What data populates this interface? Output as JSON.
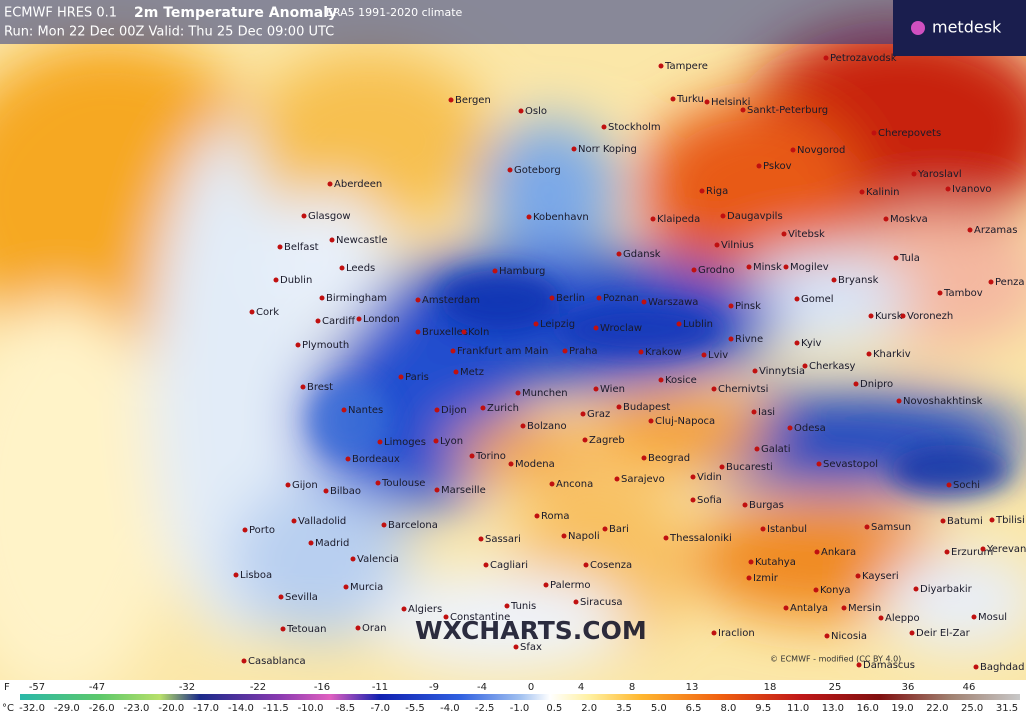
{
  "header": {
    "model": "ECMWF HRES 0.1",
    "product": "2m Temperature Anomaly",
    "climate": "ERA5 1991-2020 climate",
    "run": "Run: Mon 22 Dec 00Z Valid: Thu 25 Dec 09:00 UTC"
  },
  "brand": "metdesk",
  "watermark": "WXCHARTS.COM",
  "copyright": "© ECMWF - modified (CC BY 4.0)",
  "legend": {
    "f_unit": "F",
    "f_labels": [
      "-57",
      "-47",
      "-32",
      "-22",
      "-16",
      "-11",
      "-9",
      "-4",
      "0",
      "4",
      "8",
      "13",
      "18",
      "25",
      "36",
      "46"
    ],
    "c_unit": "°C",
    "c_labels": [
      "-32.0",
      "-29.0",
      "-26.0",
      "-23.0",
      "-20.0",
      "-17.0",
      "-14.0",
      "-11.5",
      "-10.0",
      "-8.5",
      "-7.0",
      "-5.5",
      "-4.0",
      "-2.5",
      "-1.0",
      "0.5",
      "2.0",
      "3.5",
      "5.0",
      "6.5",
      "8.0",
      "9.5",
      "11.0",
      "13.0",
      "16.0",
      "19.0",
      "22.0",
      "25.0",
      "31.5"
    ]
  },
  "cities": [
    "Tampere",
    "Petrozavodsk",
    "Bergen",
    "Oslo",
    "Turku",
    "Helsinki",
    "Sankt-Peterburg",
    "Stockholm",
    "Norr Koping",
    "Cherepovets",
    "Goteborg",
    "Novgorod",
    "Pskov",
    "Yaroslavl",
    "Aberdeen",
    "Ivanovo",
    "Kalinin",
    "Riga",
    "Glasgow",
    "Kobenhavn",
    "Klaipeda",
    "Daugavpils",
    "Moskva",
    "Arzamas",
    "Vitebsk",
    "Newcastle",
    "Belfast",
    "Vilnius",
    "Gdansk",
    "Tula",
    "Leeds",
    "Grodno",
    "Minsk",
    "Mogilev",
    "Hamburg",
    "Dublin",
    "Bryansk",
    "Penza",
    "Tambov",
    "Birmingham",
    "Amsterdam",
    "Berlin",
    "Poznan",
    "Warszawa",
    "Gomel",
    "Pinsk",
    "Cork",
    "Kursk",
    "Voronezh",
    "London",
    "Cardiff",
    "Bruxelles",
    "Koln",
    "Leipzig",
    "Wroclaw",
    "Lublin",
    "Rivne",
    "Kyiv",
    "Plymouth",
    "Frankfurt am Main",
    "Praha",
    "Krakow",
    "Lviv",
    "Kharkiv",
    "Cherkasy",
    "Vinnytsia",
    "Paris",
    "Metz",
    "Kosice",
    "Brest",
    "Dnipro",
    "Chernivtsi",
    "Wien",
    "Munchen",
    "Novoshakhtinsk",
    "Budapest",
    "Zurich",
    "Dijon",
    "Nantes",
    "Graz",
    "Iasi",
    "Cluj-Napoca",
    "Bolzano",
    "Odesa",
    "Zagreb",
    "Limoges",
    "Lyon",
    "Galati",
    "Torino",
    "Bordeaux",
    "Beograd",
    "Modena",
    "Sevastopol",
    "Bucaresti",
    "Vidin",
    "Sarajevo",
    "Toulouse",
    "Marseille",
    "Ancona",
    "Gijon",
    "Bilbao",
    "Sochi",
    "Sofia",
    "Burgas",
    "Roma",
    "Batumi",
    "Tbilisi",
    "Valladolid",
    "Barcelona",
    "Samsun",
    "Bari",
    "Istanbul",
    "Porto",
    "Napoli",
    "Thessaloniki",
    "Sassari",
    "Madrid",
    "Erzurum",
    "Yerevan",
    "Ankara",
    "Valencia",
    "Kutahya",
    "Cagliari",
    "Cosenza",
    "Lisboa",
    "Kayseri",
    "Izmir",
    "Murcia",
    "Palermo",
    "Diyarbakir",
    "Konya",
    "Sevilla",
    "Siracusa",
    "Tunis",
    "Algiers",
    "Antalya",
    "Mersin",
    "Mosul",
    "Aleppo",
    "Constantine",
    "Oran",
    "Tetouan",
    "Iraclion",
    "Deir El-Zar",
    "Nicosia",
    "Sfax",
    "Casablanca",
    "Damascus",
    "Baghdad"
  ]
}
